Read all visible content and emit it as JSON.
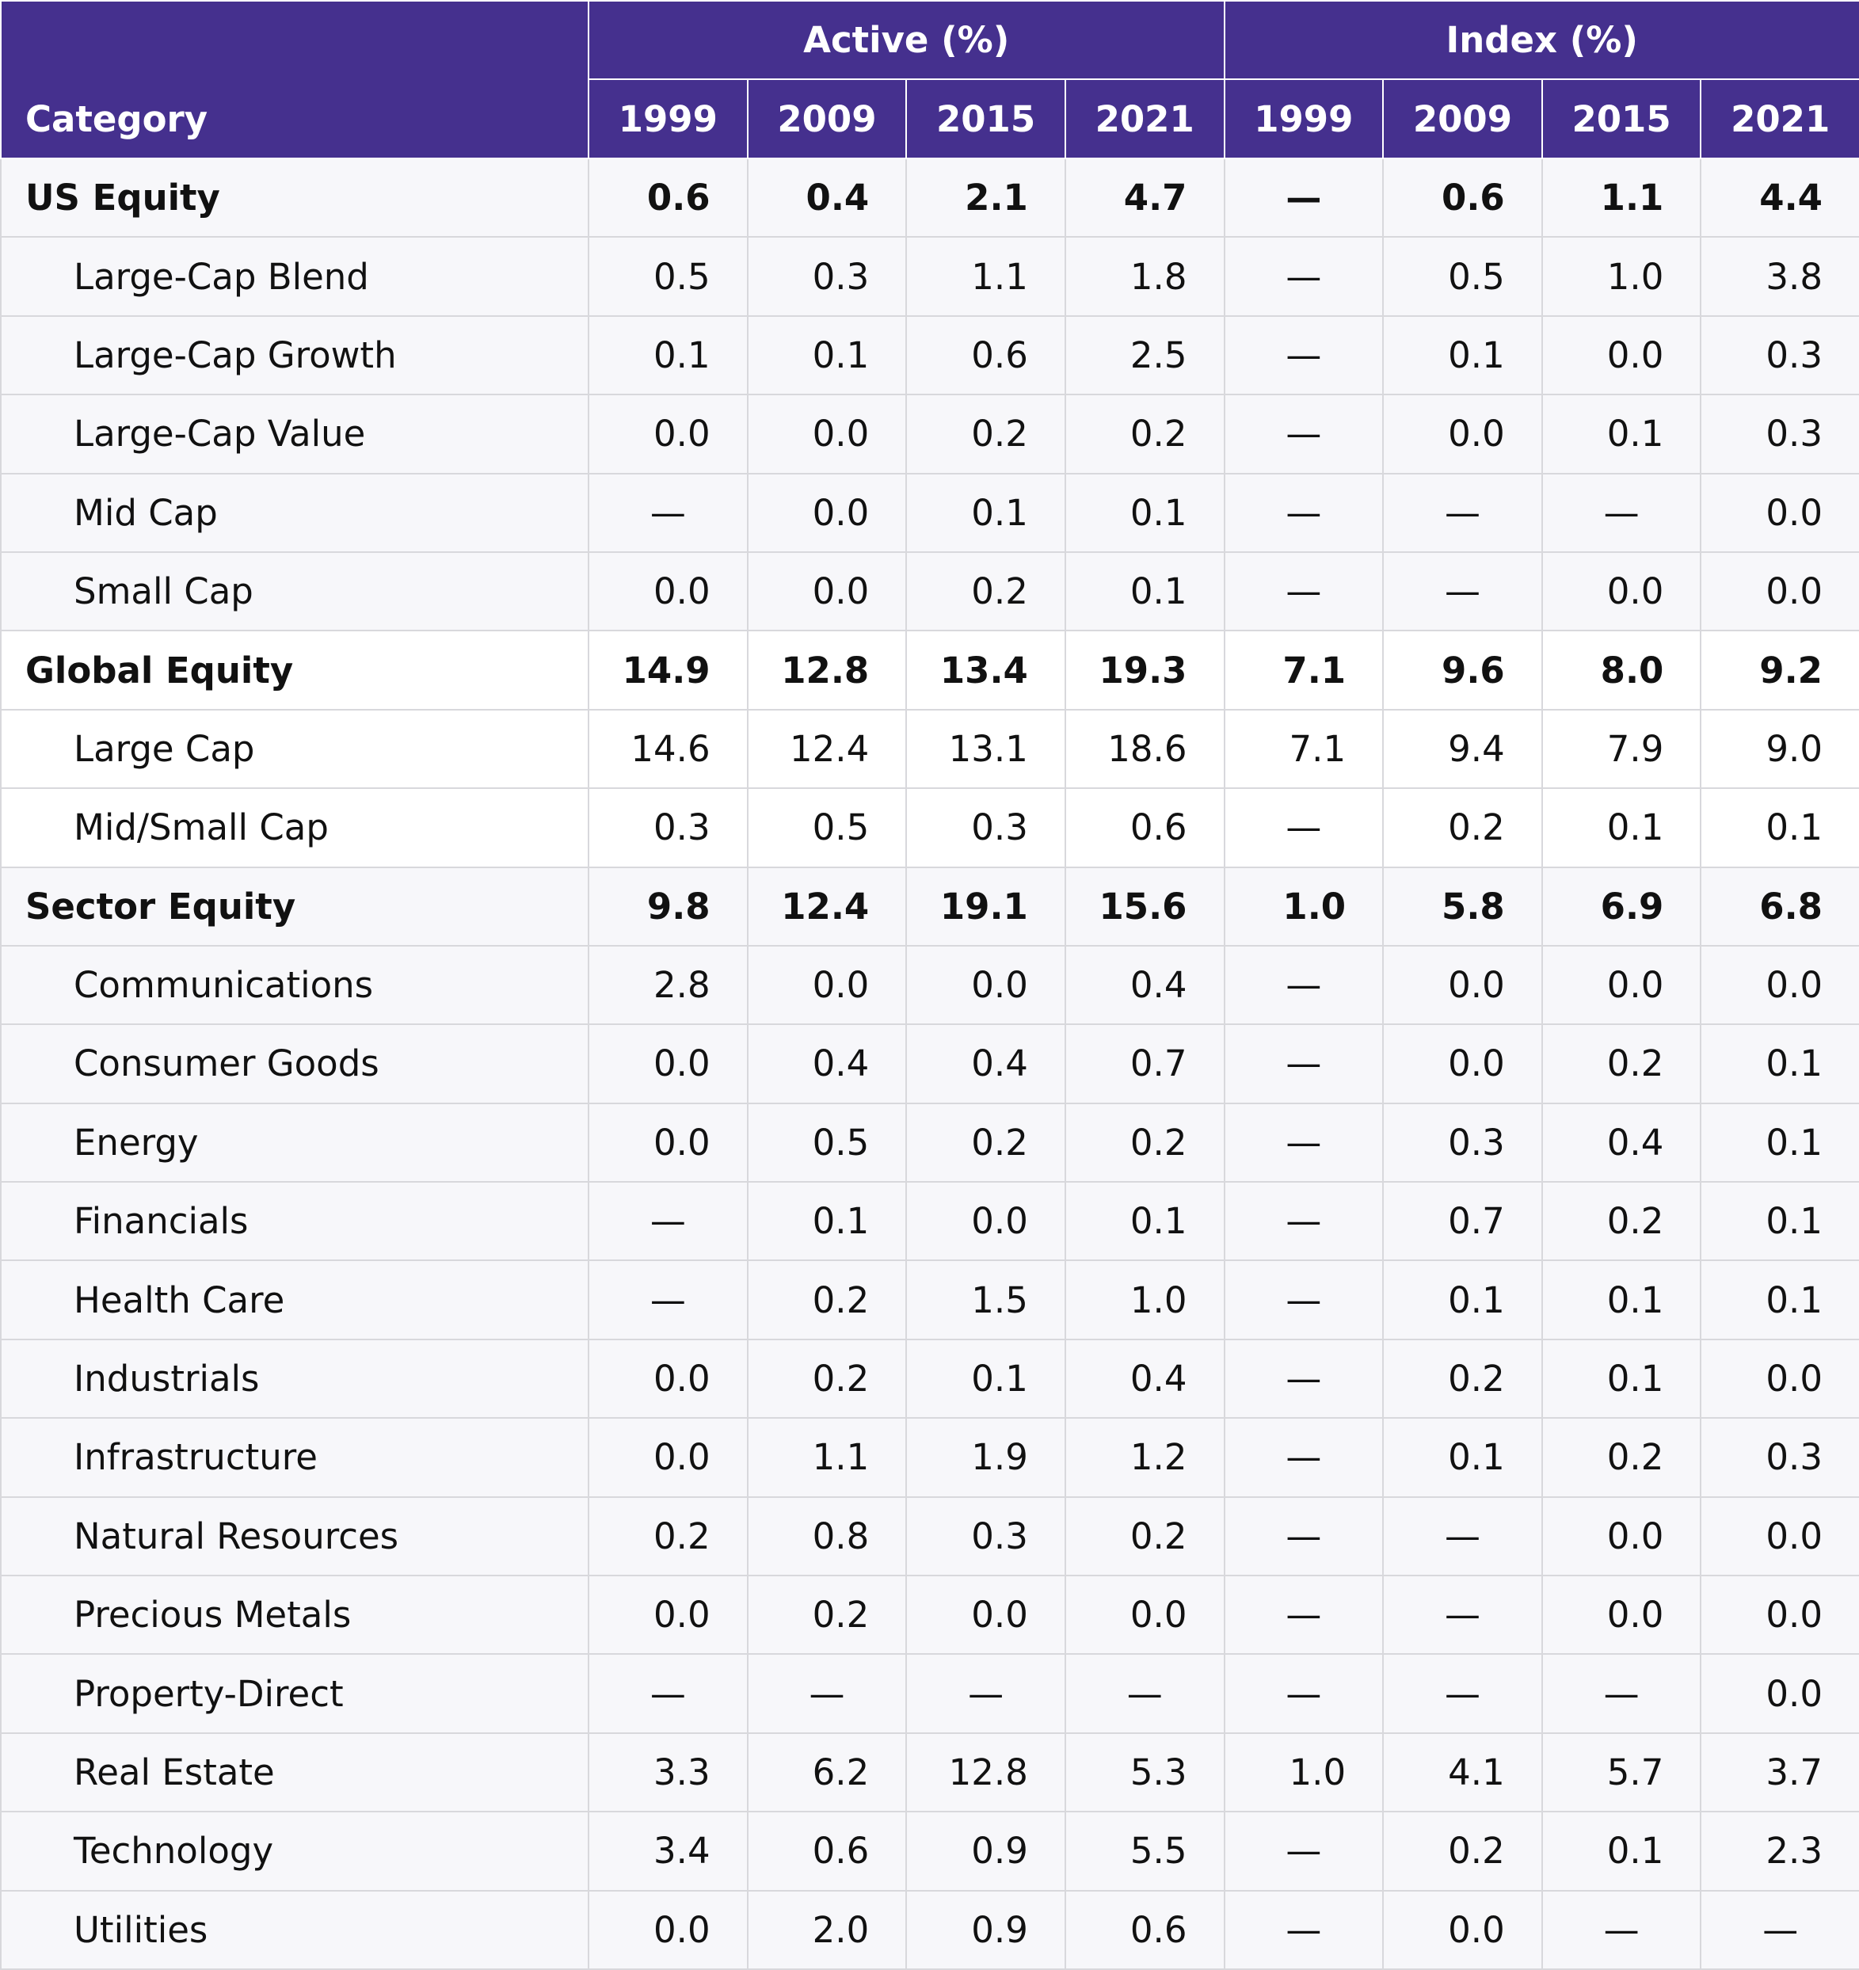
{
  "table": {
    "category_header": "Category",
    "groups": [
      {
        "label": "Active (%)",
        "years": [
          "1999",
          "2009",
          "2015",
          "2021"
        ]
      },
      {
        "label": "Index (%)",
        "years": [
          "1999",
          "2009",
          "2015",
          "2021"
        ]
      }
    ],
    "rows": [
      {
        "category": "US Equity",
        "level": "group",
        "active": [
          "0.6",
          "0.4",
          "2.1",
          "4.7"
        ],
        "index": [
          "—",
          "0.6",
          "1.1",
          "4.4"
        ]
      },
      {
        "category": "Large-Cap Blend",
        "level": "sub",
        "active": [
          "0.5",
          "0.3",
          "1.1",
          "1.8"
        ],
        "index": [
          "—",
          "0.5",
          "1.0",
          "3.8"
        ]
      },
      {
        "category": "Large-Cap Growth",
        "level": "sub",
        "active": [
          "0.1",
          "0.1",
          "0.6",
          "2.5"
        ],
        "index": [
          "—",
          "0.1",
          "0.0",
          "0.3"
        ]
      },
      {
        "category": "Large-Cap Value",
        "level": "sub",
        "active": [
          "0.0",
          "0.0",
          "0.2",
          "0.2"
        ],
        "index": [
          "—",
          "0.0",
          "0.1",
          "0.3"
        ]
      },
      {
        "category": "Mid Cap",
        "level": "sub",
        "active": [
          "—",
          "0.0",
          "0.1",
          "0.1"
        ],
        "index": [
          "—",
          "—",
          "—",
          "0.0"
        ]
      },
      {
        "category": "Small Cap",
        "level": "sub",
        "active": [
          "0.0",
          "0.0",
          "0.2",
          "0.1"
        ],
        "index": [
          "—",
          "—",
          "0.0",
          "0.0"
        ]
      },
      {
        "category": "Global Equity",
        "level": "group",
        "active": [
          "14.9",
          "12.8",
          "13.4",
          "19.3"
        ],
        "index": [
          "7.1",
          "9.6",
          "8.0",
          "9.2"
        ]
      },
      {
        "category": "Large Cap",
        "level": "sub",
        "active": [
          "14.6",
          "12.4",
          "13.1",
          "18.6"
        ],
        "index": [
          "7.1",
          "9.4",
          "7.9",
          "9.0"
        ]
      },
      {
        "category": "Mid/Small Cap",
        "level": "sub",
        "active": [
          "0.3",
          "0.5",
          "0.3",
          "0.6"
        ],
        "index": [
          "—",
          "0.2",
          "0.1",
          "0.1"
        ]
      },
      {
        "category": "Sector Equity",
        "level": "group",
        "active": [
          "9.8",
          "12.4",
          "19.1",
          "15.6"
        ],
        "index": [
          "1.0",
          "5.8",
          "6.9",
          "6.8"
        ]
      },
      {
        "category": "Communications",
        "level": "sub",
        "active": [
          "2.8",
          "0.0",
          "0.0",
          "0.4"
        ],
        "index": [
          "—",
          "0.0",
          "0.0",
          "0.0"
        ]
      },
      {
        "category": "Consumer Goods",
        "level": "sub",
        "active": [
          "0.0",
          "0.4",
          "0.4",
          "0.7"
        ],
        "index": [
          "—",
          "0.0",
          "0.2",
          "0.1"
        ]
      },
      {
        "category": "Energy",
        "level": "sub",
        "active": [
          "0.0",
          "0.5",
          "0.2",
          "0.2"
        ],
        "index": [
          "—",
          "0.3",
          "0.4",
          "0.1"
        ]
      },
      {
        "category": "Financials",
        "level": "sub",
        "active": [
          "—",
          "0.1",
          "0.0",
          "0.1"
        ],
        "index": [
          "—",
          "0.7",
          "0.2",
          "0.1"
        ]
      },
      {
        "category": "Health Care",
        "level": "sub",
        "active": [
          "—",
          "0.2",
          "1.5",
          "1.0"
        ],
        "index": [
          "—",
          "0.1",
          "0.1",
          "0.1"
        ]
      },
      {
        "category": "Industrials",
        "level": "sub",
        "active": [
          "0.0",
          "0.2",
          "0.1",
          "0.4"
        ],
        "index": [
          "—",
          "0.2",
          "0.1",
          "0.0"
        ]
      },
      {
        "category": "Infrastructure",
        "level": "sub",
        "active": [
          "0.0",
          "1.1",
          "1.9",
          "1.2"
        ],
        "index": [
          "—",
          "0.1",
          "0.2",
          "0.3"
        ]
      },
      {
        "category": "Natural Resources",
        "level": "sub",
        "active": [
          "0.2",
          "0.8",
          "0.3",
          "0.2"
        ],
        "index": [
          "—",
          "—",
          "0.0",
          "0.0"
        ]
      },
      {
        "category": "Precious Metals",
        "level": "sub",
        "active": [
          "0.0",
          "0.2",
          "0.0",
          "0.0"
        ],
        "index": [
          "—",
          "—",
          "0.0",
          "0.0"
        ]
      },
      {
        "category": "Property-Direct",
        "level": "sub",
        "active": [
          "—",
          "—",
          "—",
          "—"
        ],
        "index": [
          "—",
          "—",
          "—",
          "0.0"
        ]
      },
      {
        "category": "Real Estate",
        "level": "sub",
        "active": [
          "3.3",
          "6.2",
          "12.8",
          "5.3"
        ],
        "index": [
          "1.0",
          "4.1",
          "5.7",
          "3.7"
        ]
      },
      {
        "category": "Technology",
        "level": "sub",
        "active": [
          "3.4",
          "0.6",
          "0.9",
          "5.5"
        ],
        "index": [
          "—",
          "0.2",
          "0.1",
          "2.3"
        ]
      },
      {
        "category": "Utilities",
        "level": "sub",
        "active": [
          "0.0",
          "2.0",
          "0.9",
          "0.6"
        ],
        "index": [
          "—",
          "0.0",
          "—",
          "—"
        ]
      }
    ]
  },
  "colors": {
    "header_bg": "#45308e",
    "header_text": "#ffffff",
    "row_shade": "#f7f7fa",
    "row_plain": "#ffffff",
    "grid_line": "#d8d8dc"
  }
}
